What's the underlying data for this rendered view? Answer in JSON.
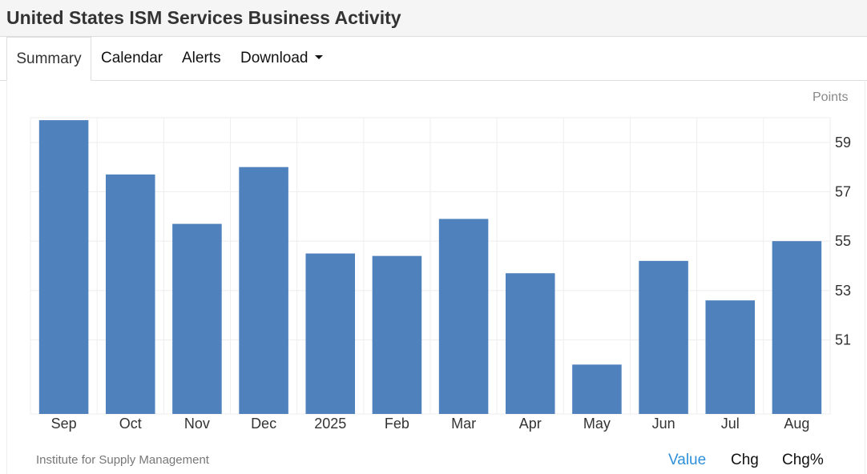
{
  "page": {
    "title": "United States ISM Services Business Activity"
  },
  "tabs": [
    {
      "label": "Summary"
    },
    {
      "label": "Calendar"
    },
    {
      "label": "Alerts"
    },
    {
      "label": "Download"
    }
  ],
  "colors": {
    "bar": "#4f81bd",
    "active_link": "#2f8fd8",
    "grid": "#eeeeee"
  },
  "chart_data": {
    "type": "bar",
    "unit": "Points",
    "categories": [
      "Sep",
      "Oct",
      "Nov",
      "Dec",
      "2025",
      "Feb",
      "Mar",
      "Apr",
      "May",
      "Jun",
      "Jul",
      "Aug"
    ],
    "values": [
      59.9,
      57.7,
      55.7,
      58.0,
      54.5,
      54.4,
      55.9,
      53.7,
      50.0,
      54.2,
      52.6,
      55.0
    ],
    "y_ticks": [
      51,
      53,
      55,
      57,
      59
    ],
    "ylim": [
      48.0,
      60.0
    ],
    "grid": true,
    "y_axis_side": "right"
  },
  "footer": {
    "source": "Institute for Supply Management",
    "modes": [
      "Value",
      "Chg",
      "Chg%"
    ],
    "active_mode": "Value"
  }
}
